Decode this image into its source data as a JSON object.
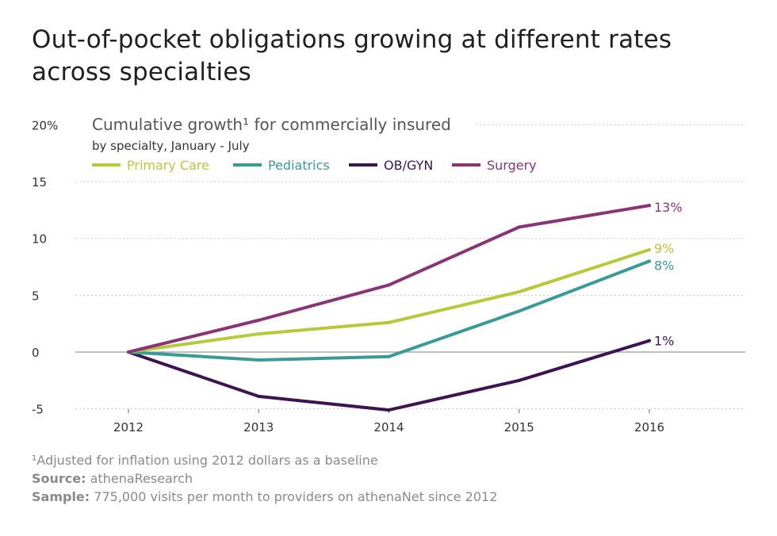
{
  "title": "Out-of-pocket obligations growing at different rates across specialties",
  "footnote": "¹Adjusted for inflation using 2012 dollars as a baseline",
  "source_label": "Source:",
  "source_value": "athenaResearch",
  "sample_label": "Sample:",
  "sample_value": "775,000 visits per month to providers on athenaNet since 2012",
  "colors": {
    "primary_care": "#b5c93a",
    "pediatrics": "#3a9a95",
    "obgyn": "#3c1450",
    "surgery": "#8a3478"
  },
  "chart_data": {
    "type": "line",
    "subtitle_line1": "Cumulative growth¹ for commercially insured",
    "subtitle_line2": "by specialty, January - July",
    "x": [
      "2012",
      "2013",
      "2014",
      "2015",
      "2016"
    ],
    "ylim": [
      -5,
      20
    ],
    "yticks": [
      "20%",
      "15",
      "10",
      "5",
      "0",
      "-5"
    ],
    "ytick_values": [
      20,
      15,
      10,
      5,
      0,
      -5
    ],
    "grid": true,
    "legend_position": "top-left",
    "series": [
      {
        "name": "Primary Care",
        "values": [
          0,
          1.6,
          2.6,
          5.3,
          9.0
        ],
        "end_label": "9%",
        "color": "#b5c93a"
      },
      {
        "name": "Pediatrics",
        "values": [
          0,
          -0.7,
          -0.4,
          3.6,
          8.0
        ],
        "end_label": "8%",
        "color": "#3a9a95"
      },
      {
        "name": "OB/GYN",
        "values": [
          0,
          -3.9,
          -5.1,
          -2.5,
          1.0
        ],
        "end_label": "1%",
        "color": "#3c1450"
      },
      {
        "name": "Surgery",
        "values": [
          0,
          2.8,
          5.9,
          11.0,
          12.9
        ],
        "end_label": "13%",
        "color": "#8a3478"
      }
    ]
  }
}
